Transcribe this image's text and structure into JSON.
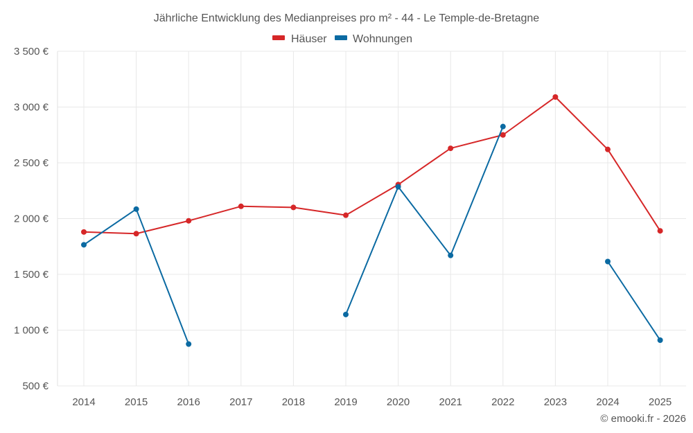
{
  "chart_data": {
    "type": "line",
    "title": "Jährliche Entwicklung des Medianpreises pro m² - 44 - Le Temple-de-Bretagne",
    "categories": [
      "2014",
      "2015",
      "2016",
      "2017",
      "2018",
      "2019",
      "2020",
      "2021",
      "2022",
      "2023",
      "2024",
      "2025"
    ],
    "series": [
      {
        "name": "Häuser",
        "color": "#d62728",
        "values": [
          1880,
          1865,
          1980,
          2110,
          2100,
          2030,
          2305,
          2630,
          2750,
          3090,
          2620,
          1890
        ]
      },
      {
        "name": "Wohnungen",
        "color": "#0b6aa2",
        "values": [
          1765,
          2085,
          875,
          null,
          null,
          1140,
          2285,
          1670,
          2825,
          null,
          1615,
          910
        ]
      }
    ],
    "ylim": [
      500,
      3500
    ],
    "yticks": [
      500,
      1000,
      1500,
      2000,
      2500,
      3000,
      3500
    ],
    "ytick_labels": [
      "500 €",
      "1 000 €",
      "1 500 €",
      "2 000 €",
      "2 500 €",
      "3 000 €",
      "3 500 €"
    ],
    "xlabel": "",
    "ylabel": "",
    "legend": "top-center",
    "grid": true
  },
  "credit": "© emooki.fr - 2026"
}
